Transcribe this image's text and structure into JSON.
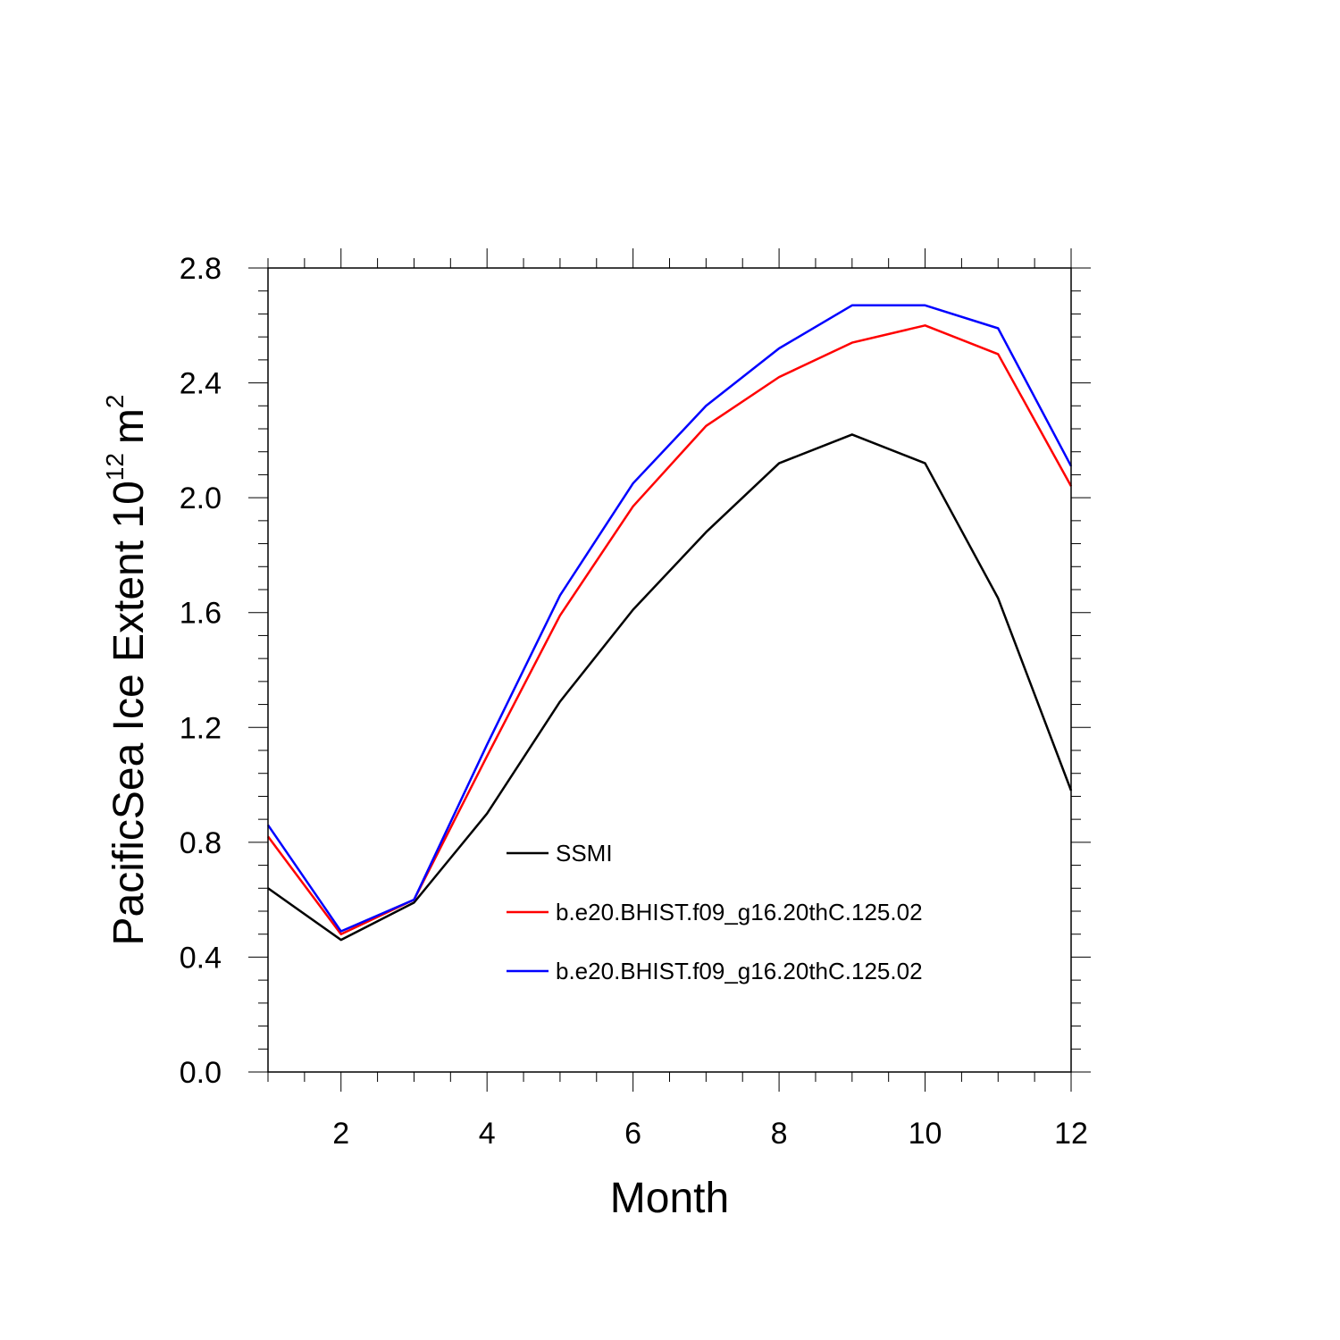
{
  "chart_data": {
    "type": "line",
    "xlabel": "Month",
    "ylabel_main": "PacificSea Ice Extent 10",
    "ylabel_sup": "12",
    "ylabel_unit": "m",
    "ylabel_unit_sup": "2",
    "xlim": [
      1,
      12
    ],
    "ylim": [
      0.0,
      2.8
    ],
    "xticks": [
      2,
      4,
      6,
      8,
      10,
      12
    ],
    "yticks": [
      0.0,
      0.4,
      0.8,
      1.2,
      1.6,
      2.0,
      2.4,
      2.8
    ],
    "ytick_labels": [
      "0.0",
      "0.4",
      "0.8",
      "1.2",
      "1.6",
      "2.0",
      "2.4",
      "2.8"
    ],
    "grid": false,
    "legend_position": "lower-right",
    "x": [
      1,
      2,
      3,
      4,
      5,
      6,
      7,
      8,
      9,
      10,
      11,
      12
    ],
    "series": [
      {
        "name": "SSMI",
        "color": "#000000",
        "values": [
          0.64,
          0.46,
          0.59,
          0.9,
          1.29,
          1.61,
          1.88,
          2.12,
          2.22,
          2.12,
          1.65,
          0.98
        ]
      },
      {
        "name": "b.e20.BHIST.f09_g16.20thC.125.02",
        "color": "#ff0000",
        "values": [
          0.82,
          0.48,
          0.6,
          1.1,
          1.59,
          1.97,
          2.25,
          2.42,
          2.54,
          2.6,
          2.5,
          2.04
        ]
      },
      {
        "name": "b.e20.BHIST.f09_g16.20thC.125.02",
        "color": "#0000ff",
        "values": [
          0.86,
          0.49,
          0.6,
          1.14,
          1.66,
          2.05,
          2.32,
          2.52,
          2.67,
          2.67,
          2.59,
          2.11
        ]
      }
    ]
  }
}
